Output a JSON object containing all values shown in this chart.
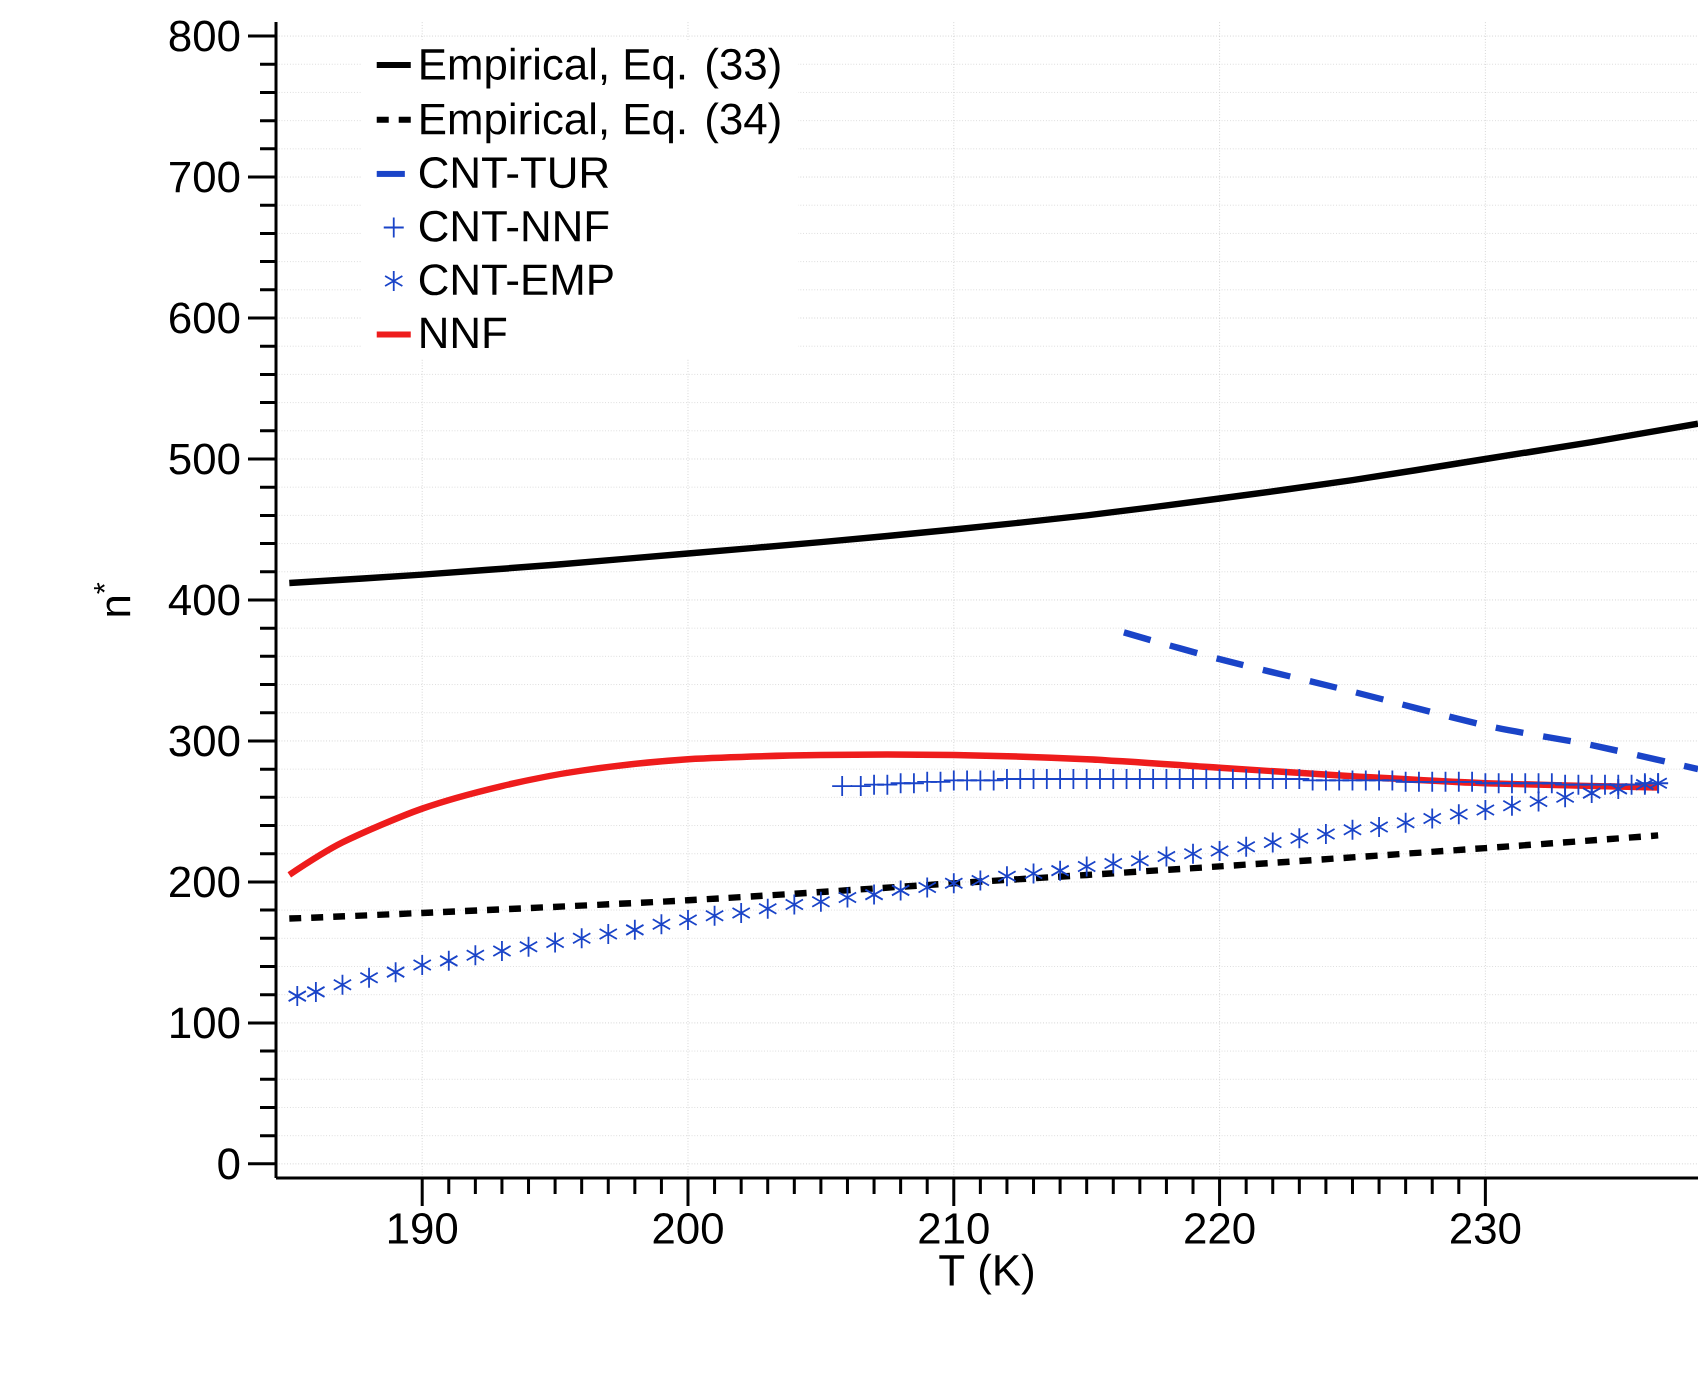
{
  "chart_data": {
    "type": "line",
    "xlabel": "T (K)",
    "ylabel": "n$^{*}$",
    "xlim": [
      184.5,
      238
    ],
    "ylim": [
      -10,
      810
    ],
    "xticks": [
      190,
      200,
      210,
      220,
      230
    ],
    "yticks": [
      0,
      100,
      200,
      300,
      400,
      500,
      600,
      700,
      800
    ],
    "grid": true,
    "legend": "top left",
    "series": [
      {
        "name": "Empirical, Eq. (33)",
        "color": "#000000",
        "line_style": "solid",
        "x": [
          185,
          190,
          195,
          200,
          205,
          210,
          215,
          220,
          225,
          230,
          234,
          238
        ],
        "values": [
          412,
          418,
          425,
          433,
          441,
          450,
          460,
          472,
          485,
          500,
          512,
          525
        ]
      },
      {
        "name": "Empirical, Eq. (34)",
        "color": "#000000",
        "line_style": "dotted",
        "x": [
          185,
          190,
          200,
          210,
          220,
          230,
          236.5
        ],
        "values": [
          174,
          178,
          187,
          199,
          211,
          224,
          233
        ]
      },
      {
        "name": "CNT-TUR",
        "color": "#1a44c8",
        "line_style": "dashed",
        "x": [
          216.4,
          220,
          225,
          230,
          234,
          238
        ],
        "values": [
          377,
          358,
          335,
          311,
          297,
          280
        ]
      },
      {
        "name": "CNT-NNF",
        "type": "scatter",
        "marker": "cross",
        "color": "#1a44c8",
        "x": [
          205.8,
          206.5,
          207,
          207.5,
          208,
          208.5,
          209,
          209.5,
          210,
          210.5,
          211,
          211.5,
          212,
          212.5,
          213,
          213.5,
          214,
          214.5,
          215,
          215.5,
          216,
          216.5,
          217,
          217.5,
          218,
          218.5,
          219,
          219.5,
          220,
          220.5,
          221,
          221.5,
          222,
          222.5,
          223,
          223.5,
          224,
          224.5,
          225,
          225.5,
          226,
          226.5,
          227,
          227.5,
          228,
          228.5,
          229,
          229.5,
          230,
          230.5,
          231,
          231.5,
          232,
          232.5,
          233,
          233.5,
          234,
          234.5,
          235,
          235.5,
          236,
          236.5
        ],
        "values": [
          268,
          268,
          269,
          269,
          270,
          270,
          271,
          271,
          272,
          272,
          272,
          272,
          273,
          273,
          273,
          273,
          273,
          273,
          273,
          273,
          273,
          273,
          273,
          273,
          273,
          273,
          273,
          273,
          273,
          273,
          273,
          273,
          273,
          273,
          273,
          272,
          272,
          272,
          272,
          272,
          272,
          272,
          271,
          271,
          271,
          271,
          271,
          271,
          270,
          270,
          270,
          270,
          270,
          270,
          269,
          269,
          269,
          269,
          269,
          269,
          270,
          270
        ]
      },
      {
        "name": "CNT-EMP",
        "type": "scatter",
        "color": "#1a44c8",
        "x": [
          185.3,
          186,
          187,
          188,
          189,
          190,
          191,
          192,
          193,
          194,
          195,
          196,
          197,
          198,
          199,
          200,
          201,
          202,
          203,
          204,
          205,
          206,
          207,
          208,
          209,
          210,
          211,
          212,
          213,
          214,
          215,
          216,
          217,
          218,
          219,
          220,
          221,
          222,
          223,
          224,
          225,
          226,
          227,
          228,
          229,
          230,
          231,
          232,
          233,
          234,
          235,
          236,
          236.5
        ],
        "values": [
          119,
          122,
          127,
          132,
          136,
          141,
          144,
          148,
          151,
          154,
          157,
          160,
          163,
          166,
          170,
          173,
          176,
          178,
          181,
          184,
          186,
          189,
          191,
          194,
          196,
          199,
          201,
          204,
          206,
          208,
          211,
          213,
          215,
          218,
          220,
          222,
          225,
          228,
          231,
          234,
          237,
          239,
          242,
          245,
          248,
          251,
          254,
          257,
          260,
          263,
          266,
          269,
          270
        ]
      },
      {
        "name": "NNF",
        "color": "#ee1c1c",
        "line_style": "solid",
        "x": [
          185,
          187,
          190,
          193,
          196,
          200,
          205,
          210,
          215,
          220,
          225,
          230,
          236.5
        ],
        "values": [
          205,
          228,
          252,
          268,
          279,
          287,
          290,
          290,
          287,
          281,
          275,
          270,
          267
        ]
      }
    ]
  }
}
